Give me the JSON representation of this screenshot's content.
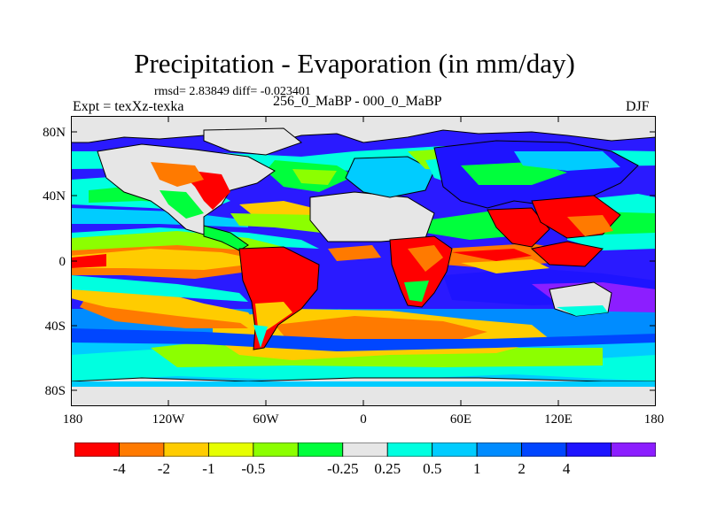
{
  "figure": {
    "title": "Precipitation - Evaporation (in mm/day)",
    "stats": "rmsd= 2.83849 diff= -0.023401",
    "experiment": "Expt = texXz-texka",
    "comparison": "256_0_MaBP - 000_0_MaBP",
    "season": "DJF"
  },
  "axes": {
    "y_labels": [
      "80N",
      "40N",
      "0",
      "40S",
      "80S"
    ],
    "x_labels": [
      "180",
      "120W",
      "60W",
      "0",
      "60E",
      "120E",
      "180"
    ]
  },
  "colorbar": {
    "colors": [
      "#ff0000",
      "#ff7a00",
      "#ffcc00",
      "#e6ff00",
      "#8cff00",
      "#00ff3c",
      "#e6e6e6",
      "#00ffe0",
      "#00ccff",
      "#008cff",
      "#0046ff",
      "#1e14ff",
      "#8c1eff"
    ],
    "labels": [
      "-4",
      "-2",
      "-1",
      "-0.5",
      "-0.25",
      "0.25",
      "0.5",
      "1",
      "2",
      "4"
    ]
  },
  "map_colors": {
    "ocean": "#2a1aff",
    "land": "#e6e6e6",
    "deep_red": "#ff0000",
    "orange": "#ff7a00",
    "yellow": "#ffcc00",
    "lime": "#8cff00",
    "green": "#00ff3c",
    "cyan": "#00ffe0",
    "sky": "#00ccff",
    "blue": "#008cff",
    "royal": "#0046ff",
    "purple": "#8c1eff"
  }
}
